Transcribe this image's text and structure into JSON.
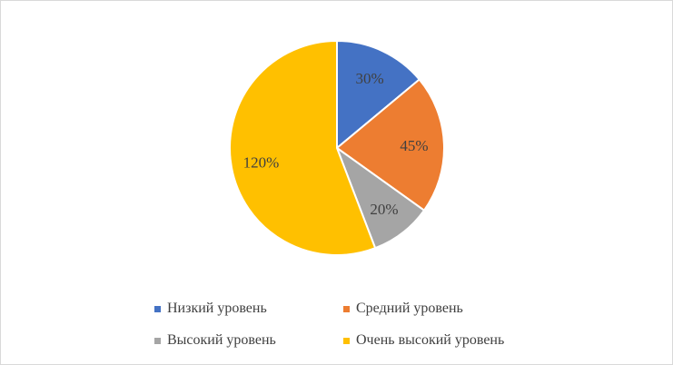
{
  "chart_data": {
    "type": "pie",
    "title": "",
    "start_angle_deg": 0,
    "slices": [
      {
        "label": "Низкий уровень",
        "value": 30,
        "display": "30%",
        "color": "#4472c4"
      },
      {
        "label": "Средний уровень",
        "value": 45,
        "display": "45%",
        "color": "#ed7d31"
      },
      {
        "label": "Высокий уровень",
        "value": 20,
        "display": "20%",
        "color": "#a5a5a5"
      },
      {
        "label": "Очень высокий уровень",
        "value": 120,
        "display": "120%",
        "color": "#ffc000"
      }
    ],
    "legend_position": "bottom"
  }
}
